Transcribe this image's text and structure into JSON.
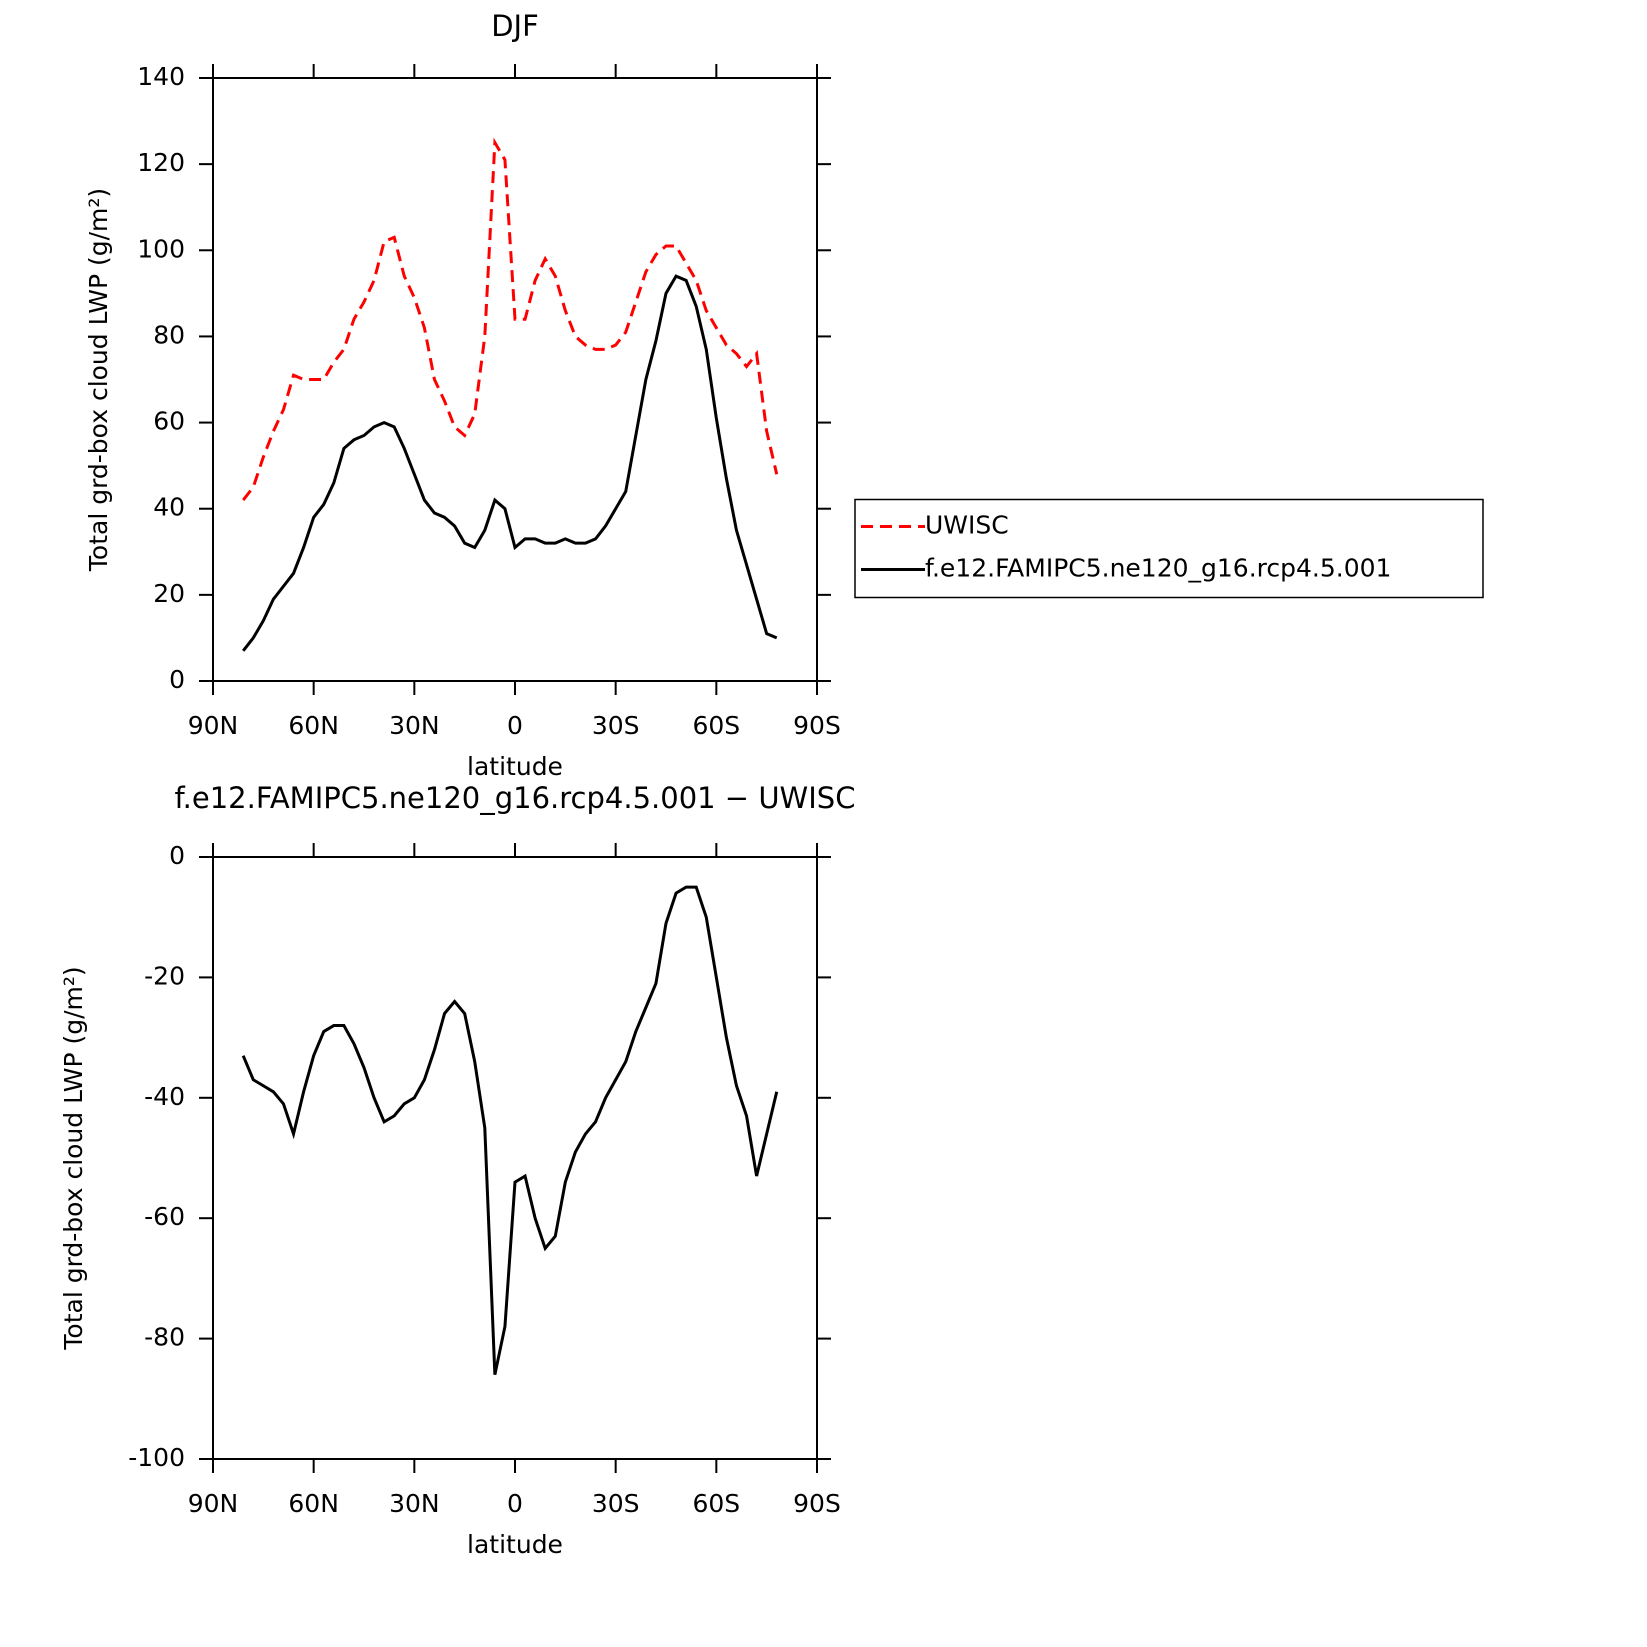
{
  "chart_data": [
    {
      "type": "line",
      "title": "DJF",
      "xlabel": "latitude",
      "ylabel": "Total grd-box cloud LWP (g/m²)",
      "x": [
        81,
        78,
        75,
        72,
        69,
        66,
        63,
        60,
        57,
        54,
        51,
        48,
        45,
        42,
        39,
        36,
        33,
        30,
        27,
        24,
        21,
        18,
        15,
        12,
        9,
        6,
        3,
        0,
        -3,
        -6,
        -9,
        -12,
        -15,
        -18,
        -21,
        -24,
        -27,
        -30,
        -33,
        -36,
        -39,
        -42,
        -45,
        -48,
        -51,
        -54,
        -57,
        -60,
        -63,
        -66,
        -69,
        -72,
        -75,
        -78
      ],
      "series": [
        {
          "name": "UWISC",
          "color": "#ff0000",
          "linestyle": "dashed",
          "values": [
            42,
            45,
            52,
            58,
            63,
            71,
            70,
            70,
            70,
            74,
            77,
            84,
            88,
            93,
            102,
            103,
            94,
            89,
            82,
            70,
            65,
            59,
            57,
            62,
            80,
            125,
            121,
            84,
            84,
            93,
            98,
            94,
            86,
            80,
            78,
            77,
            77,
            78,
            81,
            88,
            95,
            99,
            101,
            101,
            97,
            93,
            86,
            82,
            78,
            76,
            73,
            76,
            58,
            48
          ]
        },
        {
          "name": "f.e12.FAMIPC5.ne120_g16.rcp4.5.001",
          "color": "#000000",
          "linestyle": "solid",
          "values": [
            7,
            10,
            14,
            19,
            22,
            25,
            31,
            38,
            41,
            46,
            54,
            56,
            57,
            59,
            60,
            59,
            54,
            48,
            42,
            39,
            38,
            36,
            32,
            31,
            35,
            42,
            40,
            31,
            33,
            33,
            32,
            32,
            33,
            32,
            32,
            33,
            36,
            40,
            44,
            57,
            70,
            79,
            90,
            94,
            93,
            87,
            77,
            61,
            47,
            35,
            27,
            19,
            11,
            10
          ]
        }
      ],
      "xlim": [
        90,
        -90
      ],
      "xticks": [
        {
          "value": 90,
          "label": "90N"
        },
        {
          "value": 60,
          "label": "60N"
        },
        {
          "value": 30,
          "label": "30N"
        },
        0,
        {
          "value": -30,
          "label": "30S"
        },
        {
          "value": -60,
          "label": "60S"
        },
        {
          "value": -90,
          "label": "90S"
        }
      ],
      "ylim": [
        0,
        140
      ],
      "yticks": [
        0,
        20,
        40,
        60,
        80,
        100,
        120,
        140
      ],
      "legend": "right"
    },
    {
      "type": "line",
      "title": "f.e12.FAMIPC5.ne120_g16.rcp4.5.001 − UWISC",
      "xlabel": "latitude",
      "ylabel": "Total grd-box cloud LWP (g/m²)",
      "x": [
        81,
        78,
        75,
        72,
        69,
        66,
        63,
        60,
        57,
        54,
        51,
        48,
        45,
        42,
        39,
        36,
        33,
        30,
        27,
        24,
        21,
        18,
        15,
        12,
        9,
        6,
        3,
        0,
        -3,
        -6,
        -9,
        -12,
        -15,
        -18,
        -21,
        -24,
        -27,
        -30,
        -33,
        -36,
        -39,
        -42,
        -45,
        -48,
        -51,
        -54,
        -57,
        -60,
        -63,
        -66,
        -69,
        -72,
        -75,
        -78
      ],
      "values": [
        -33,
        -37,
        -38,
        -39,
        -41,
        -46,
        -39,
        -33,
        -29,
        -28,
        -28,
        -31,
        -35,
        -40,
        -44,
        -43,
        -41,
        -40,
        -37,
        -32,
        -26,
        -24,
        -26,
        -34,
        -45,
        -86,
        -78,
        -54,
        -53,
        -60,
        -65,
        -63,
        -54,
        -49,
        -46,
        -44,
        -40,
        -37,
        -34,
        -29,
        -25,
        -21,
        -11,
        -6,
        -5,
        -5,
        -10,
        -20,
        -30,
        -38,
        -43,
        -53,
        -46,
        -39
      ],
      "color": "#000000",
      "xlim": [
        90,
        -90
      ],
      "xticks": [
        {
          "value": 90,
          "label": "90N"
        },
        {
          "value": 60,
          "label": "60N"
        },
        {
          "value": 30,
          "label": "30N"
        },
        0,
        {
          "value": -30,
          "label": "30S"
        },
        {
          "value": -60,
          "label": "60S"
        },
        {
          "value": -90,
          "label": "90S"
        }
      ],
      "ylim": [
        -100,
        0
      ],
      "yticks": [
        -100,
        -80,
        -60,
        -40,
        -20,
        0
      ]
    }
  ]
}
